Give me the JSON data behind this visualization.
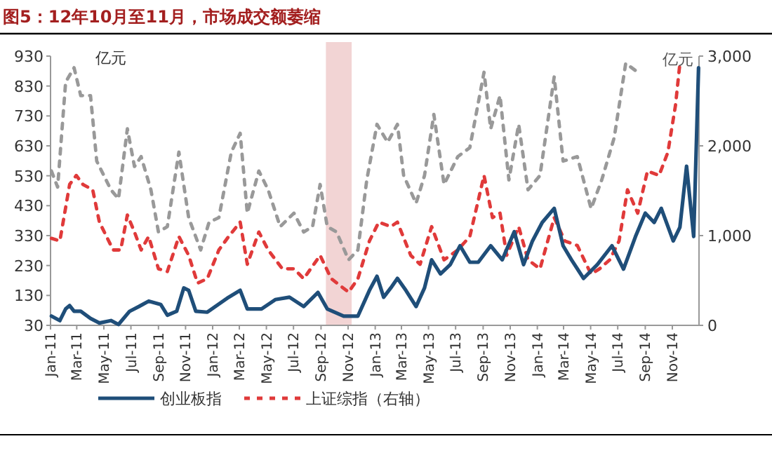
{
  "chart_data": {
    "type": "line",
    "title": "图5：12年10月至11月，市场成交额萎缩",
    "ylabel": "亿元",
    "y2label": "亿元",
    "legend": "bottom",
    "grid": false,
    "xlim": [
      "2011-01-01",
      "2014-12-31"
    ],
    "xticks": [
      {
        "value": "2011-01-01",
        "label": "Jan-11"
      },
      {
        "value": "2011-03-01",
        "label": "Mar-11"
      },
      {
        "value": "2011-05-01",
        "label": "May-11"
      },
      {
        "value": "2011-07-01",
        "label": "Jul-11"
      },
      {
        "value": "2011-09-01",
        "label": "Sep-11"
      },
      {
        "value": "2011-11-01",
        "label": "Nov-11"
      },
      {
        "value": "2012-01-01",
        "label": "Jan-12"
      },
      {
        "value": "2012-03-01",
        "label": "Mar-12"
      },
      {
        "value": "2012-05-01",
        "label": "May-12"
      },
      {
        "value": "2012-07-01",
        "label": "Jul-12"
      },
      {
        "value": "2012-09-01",
        "label": "Sep-12"
      },
      {
        "value": "2012-11-01",
        "label": "Nov-12"
      },
      {
        "value": "2013-01-01",
        "label": "Jan-13"
      },
      {
        "value": "2013-03-01",
        "label": "Mar-13"
      },
      {
        "value": "2013-05-01",
        "label": "May-13"
      },
      {
        "value": "2013-07-01",
        "label": "Jul-13"
      },
      {
        "value": "2013-09-01",
        "label": "Sep-13"
      },
      {
        "value": "2013-11-01",
        "label": "Nov-13"
      },
      {
        "value": "2014-01-01",
        "label": "Jan-14"
      },
      {
        "value": "2014-03-01",
        "label": "Mar-14"
      },
      {
        "value": "2014-05-01",
        "label": "May-14"
      },
      {
        "value": "2014-07-01",
        "label": "Jul-14"
      },
      {
        "value": "2014-09-01",
        "label": "Sep-14"
      },
      {
        "value": "2014-11-01",
        "label": "Nov-14"
      }
    ],
    "ylim": [
      30,
      930
    ],
    "yticks": [
      30,
      130,
      230,
      330,
      430,
      530,
      630,
      730,
      830,
      930
    ],
    "y2lim": [
      0,
      3000
    ],
    "y2ticks": [
      0,
      {
        "value": 1000,
        "label": "1,000"
      },
      {
        "value": 2000,
        "label": "2,000"
      },
      {
        "value": 3000,
        "label": "3,000"
      }
    ],
    "bands": [
      {
        "axis": "x",
        "from": "2012-09-12",
        "to": "2012-11-09",
        "color": "#f2d4d4"
      }
    ],
    "series": [
      {
        "color": "#999999",
        "axis": "y2",
        "line_style": "dashed",
        "x": [
          "2011-01-03",
          "2011-01-17",
          "2011-02-04",
          "2011-02-23",
          "2011-03-10",
          "2011-04-01",
          "2011-04-15",
          "2011-05-17",
          "2011-06-03",
          "2011-06-23",
          "2011-07-09",
          "2011-07-24",
          "2011-08-15",
          "2011-09-01",
          "2011-09-21",
          "2011-10-17",
          "2011-11-08",
          "2011-12-05",
          "2011-12-24",
          "2012-01-15",
          "2012-02-12",
          "2012-03-03",
          "2012-03-19",
          "2012-04-14",
          "2012-05-05",
          "2012-06-01",
          "2012-07-02",
          "2012-07-24",
          "2012-08-13",
          "2012-08-30",
          "2012-09-15",
          "2012-10-06",
          "2012-11-02",
          "2012-11-23",
          "2012-12-13",
          "2013-01-05",
          "2013-01-29",
          "2013-02-20",
          "2013-03-06",
          "2013-04-03",
          "2013-04-22",
          "2013-05-13",
          "2013-06-05",
          "2013-07-06",
          "2013-08-02",
          "2013-09-03",
          "2013-09-18",
          "2013-10-09",
          "2013-10-29",
          "2013-11-20",
          "2013-12-11",
          "2014-01-07",
          "2014-02-08",
          "2014-02-28",
          "2014-04-01",
          "2014-05-02",
          "2014-05-26",
          "2014-06-23",
          "2014-07-19",
          "2014-08-15"
        ],
        "values": [
          1720,
          1540,
          2710,
          2870,
          2560,
          2560,
          1830,
          1510,
          1410,
          2190,
          1770,
          1880,
          1510,
          1040,
          1100,
          1930,
          1200,
          840,
          1150,
          1200,
          1930,
          2140,
          1250,
          1720,
          1510,
          1100,
          1250,
          1040,
          1100,
          1570,
          1100,
          1040,
          730,
          840,
          1620,
          2240,
          2040,
          2240,
          1670,
          1360,
          1670,
          2350,
          1570,
          1880,
          1980,
          2820,
          2190,
          2560,
          1620,
          2240,
          1510,
          1670,
          2770,
          1830,
          1880,
          1300,
          1620,
          2090,
          2920,
          2820
        ]
      },
      {
        "name": "上证综指（右轴）",
        "color": "#e03a3a",
        "axis": "y2",
        "line_style": "dashed",
        "x": [
          "2011-01-03",
          "2011-01-22",
          "2011-02-13",
          "2011-02-28",
          "2011-03-15",
          "2011-04-06",
          "2011-04-21",
          "2011-05-22",
          "2011-06-08",
          "2011-06-23",
          "2011-07-09",
          "2011-07-24",
          "2011-08-10",
          "2011-09-01",
          "2011-09-21",
          "2011-10-17",
          "2011-11-08",
          "2011-11-28",
          "2011-12-20",
          "2012-01-15",
          "2012-02-06",
          "2012-03-03",
          "2012-03-19",
          "2012-04-14",
          "2012-05-05",
          "2012-06-06",
          "2012-07-02",
          "2012-07-24",
          "2012-08-30",
          "2012-09-24",
          "2012-11-02",
          "2012-11-23",
          "2012-12-19",
          "2013-01-09",
          "2013-02-05",
          "2013-02-20",
          "2013-03-22",
          "2013-04-12",
          "2013-05-08",
          "2013-06-05",
          "2013-07-06",
          "2013-08-02",
          "2013-09-03",
          "2013-09-22",
          "2013-10-09",
          "2013-10-24",
          "2013-11-20",
          "2013-12-11",
          "2014-01-07",
          "2014-02-08",
          "2014-03-04",
          "2014-04-01",
          "2014-05-02",
          "2014-05-21",
          "2014-06-13",
          "2014-07-04",
          "2014-07-23",
          "2014-08-15",
          "2014-09-06",
          "2014-10-02",
          "2014-10-22",
          "2014-11-08",
          "2014-11-18"
        ],
        "values": [
          970,
          940,
          1570,
          1670,
          1570,
          1510,
          1150,
          840,
          840,
          1230,
          1040,
          840,
          990,
          630,
          600,
          990,
          780,
          470,
          520,
          840,
          990,
          1150,
          680,
          1040,
          840,
          630,
          630,
          520,
          780,
          520,
          370,
          520,
          940,
          1150,
          1100,
          1150,
          780,
          680,
          1100,
          730,
          840,
          990,
          1670,
          1200,
          1250,
          780,
          1100,
          730,
          630,
          1200,
          940,
          890,
          570,
          630,
          730,
          940,
          1510,
          1250,
          1720,
          1670,
          1930,
          2450,
          2920
        ]
      },
      {
        "name": "创业板指",
        "color": "#1f4e79",
        "line_style": "solid",
        "x": [
          "2011-01-03",
          "2011-01-22",
          "2011-02-04",
          "2011-02-13",
          "2011-02-23",
          "2011-03-10",
          "2011-04-01",
          "2011-04-21",
          "2011-05-17",
          "2011-06-03",
          "2011-06-28",
          "2011-07-19",
          "2011-08-10",
          "2011-09-06",
          "2011-09-21",
          "2011-10-12",
          "2011-10-28",
          "2011-11-08",
          "2011-11-24",
          "2011-12-20",
          "2012-02-06",
          "2012-03-03",
          "2012-03-19",
          "2012-04-20",
          "2012-05-21",
          "2012-06-22",
          "2012-07-24",
          "2012-08-25",
          "2012-09-15",
          "2012-10-22",
          "2012-11-23",
          "2012-12-19",
          "2013-01-05",
          "2013-01-20",
          "2013-02-05",
          "2013-02-20",
          "2013-03-11",
          "2013-04-03",
          "2013-04-22",
          "2013-05-08",
          "2013-05-28",
          "2013-06-19",
          "2013-07-11",
          "2013-08-02",
          "2013-08-21",
          "2013-09-18",
          "2013-10-14",
          "2013-11-10",
          "2013-12-01",
          "2013-12-21",
          "2014-01-12",
          "2014-02-08",
          "2014-02-28",
          "2014-03-19",
          "2014-04-15",
          "2014-05-16",
          "2014-06-18",
          "2014-07-14",
          "2014-08-10",
          "2014-09-01",
          "2014-09-21",
          "2014-10-07",
          "2014-11-03",
          "2014-11-18",
          "2014-12-03",
          "2014-12-19",
          "2014-12-30"
        ],
        "values": [
          61,
          46,
          85,
          96,
          77,
          77,
          53,
          38,
          46,
          33,
          77,
          93,
          111,
          100,
          64,
          77,
          155,
          147,
          77,
          74,
          124,
          147,
          85,
          85,
          116,
          124,
          93,
          140,
          85,
          61,
          61,
          147,
          194,
          124,
          155,
          187,
          147,
          93,
          155,
          249,
          202,
          233,
          296,
          241,
          241,
          296,
          249,
          343,
          233,
          312,
          374,
          421,
          296,
          249,
          187,
          233,
          296,
          218,
          327,
          405,
          374,
          421,
          312,
          358,
          562,
          327,
          891
        ]
      }
    ]
  }
}
